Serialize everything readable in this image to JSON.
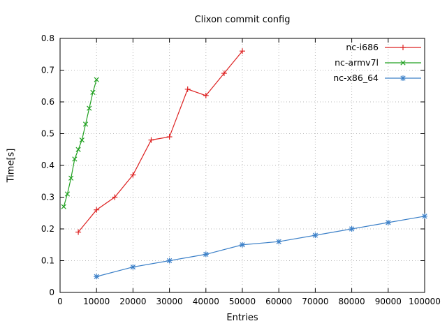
{
  "title": "Clixon commit config",
  "chart_data": {
    "type": "line",
    "title": "Clixon commit config",
    "xlabel": "Entries",
    "ylabel": "Time[s]",
    "xlim": [
      0,
      100000
    ],
    "ylim": [
      0,
      0.8
    ],
    "xticks": [
      0,
      10000,
      20000,
      30000,
      40000,
      50000,
      60000,
      70000,
      80000,
      90000,
      100000
    ],
    "yticks": [
      0,
      0.1,
      0.2,
      0.3,
      0.4,
      0.5,
      0.6,
      0.7,
      0.8
    ],
    "grid": true,
    "legend_position": "top-right",
    "colors": {
      "axis": "#000000",
      "grid": "#b8b8b8"
    },
    "series": [
      {
        "name": "nc-i686",
        "color": "#dd2020",
        "marker": "plus",
        "x": [
          5000,
          10000,
          15000,
          20000,
          25000,
          30000,
          35000,
          40000,
          45000,
          50000
        ],
        "y": [
          0.19,
          0.26,
          0.3,
          0.37,
          0.48,
          0.49,
          0.64,
          0.62,
          0.69,
          0.76
        ]
      },
      {
        "name": "nc-armv7l",
        "color": "#20a020",
        "marker": "cross",
        "x": [
          1000,
          2000,
          3000,
          4000,
          5000,
          6000,
          7000,
          8000,
          9000,
          10000
        ],
        "y": [
          0.27,
          0.31,
          0.36,
          0.42,
          0.45,
          0.48,
          0.53,
          0.58,
          0.63,
          0.67
        ]
      },
      {
        "name": "nc-x86_64",
        "color": "#3c80c8",
        "marker": "star",
        "x": [
          10000,
          20000,
          30000,
          40000,
          50000,
          60000,
          70000,
          80000,
          90000,
          100000
        ],
        "y": [
          0.05,
          0.08,
          0.1,
          0.12,
          0.15,
          0.16,
          0.18,
          0.2,
          0.22,
          0.24
        ]
      }
    ]
  }
}
